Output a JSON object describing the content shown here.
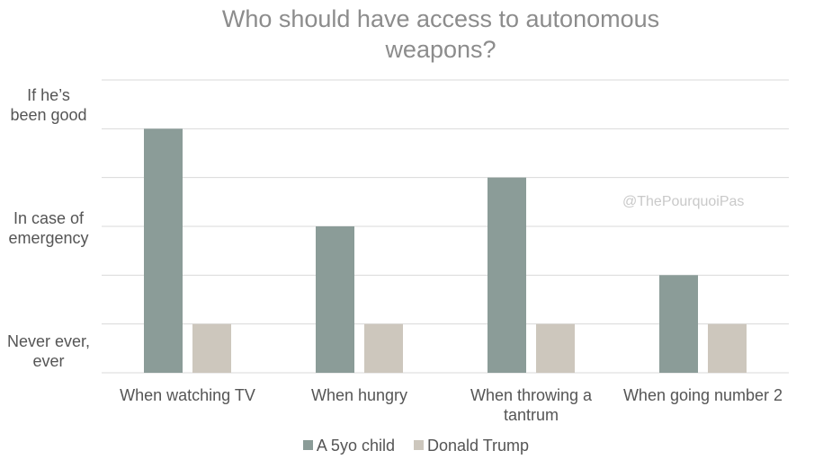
{
  "colors": {
    "series1": "#8b9c98",
    "series2": "#cdc7bd",
    "grid": "#d9d9d9",
    "text": "#555555",
    "title": "#8c8c8c"
  },
  "chart_data": {
    "type": "bar",
    "title": "Who should have access to autonomous weapons?",
    "title_lines": [
      "Who should have access to autonomous",
      "weapons?"
    ],
    "categories": [
      "When watching TV",
      "When hungry",
      "When throwing a tantrum",
      "When going number 2"
    ],
    "category_lines": [
      [
        "When watching TV"
      ],
      [
        "When hungry"
      ],
      [
        "When throwing a",
        "tantrum"
      ],
      [
        "When going number 2"
      ]
    ],
    "series": [
      {
        "name": "A 5yo child",
        "values": [
          5,
          3,
          4,
          2
        ]
      },
      {
        "name": "Donald Trump",
        "values": [
          1,
          1,
          1,
          1
        ]
      }
    ],
    "ylim": [
      0,
      6
    ],
    "y_labels": [
      {
        "value": 1,
        "lines": [
          "Never ever,",
          "ever"
        ]
      },
      {
        "value": 3,
        "lines": [
          "In case of",
          "emergency"
        ]
      },
      {
        "value": 5,
        "lines": [
          "If he’s",
          "been good"
        ]
      }
    ],
    "grid": true,
    "legend_position": "bottom",
    "annotation": "@ThePourquoiPas"
  }
}
